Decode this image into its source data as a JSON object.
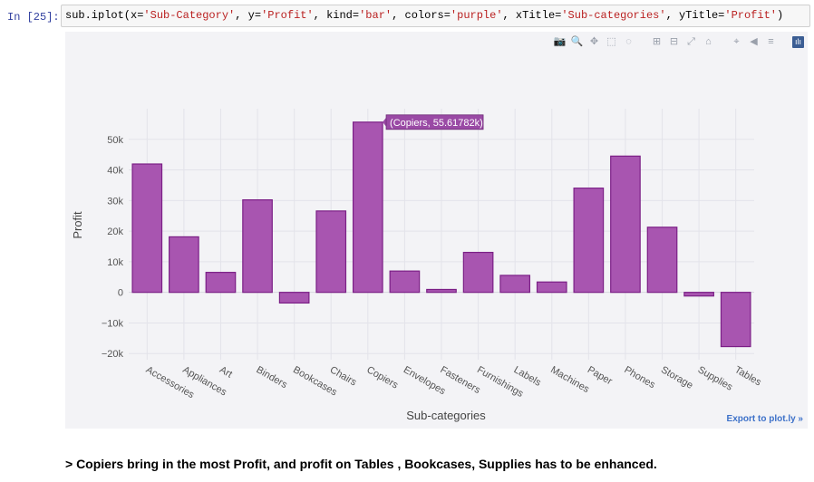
{
  "cell": {
    "prompt": "In [25]:",
    "code_prefix": "sub.iplot(x=",
    "code_parts": [
      {
        "t": "sub.iplot(x=",
        "s": false
      },
      {
        "t": "'Sub-Category'",
        "s": true
      },
      {
        "t": ", y=",
        "s": false
      },
      {
        "t": "'Profit'",
        "s": true
      },
      {
        "t": ", kind=",
        "s": false
      },
      {
        "t": "'bar'",
        "s": true
      },
      {
        "t": ", colors=",
        "s": false
      },
      {
        "t": "'purple'",
        "s": true
      },
      {
        "t": ", xTitle=",
        "s": false
      },
      {
        "t": "'Sub-categories'",
        "s": true
      },
      {
        "t": ", yTitle=",
        "s": false
      },
      {
        "t": "'Profit'",
        "s": true
      },
      {
        "t": ")",
        "s": false
      }
    ]
  },
  "toolbar": {
    "icons": [
      "camera-icon",
      "zoom-icon",
      "pan-icon",
      "box-select-icon",
      "lasso-icon",
      "zoom-in-icon",
      "zoom-out-icon",
      "autoscale-icon",
      "reset-axes-icon",
      "spike-lines-icon",
      "hover-closest-icon",
      "hover-compare-icon",
      "plotly-logo-icon"
    ]
  },
  "export_label": "Export to plot.ly »",
  "tooltip": {
    "text": "(Copiers, 55.61782k)"
  },
  "conclusion": "> Copiers bring in the most Profit, and profit on Tables , Bookcases, Supplies has to be enhanced.",
  "colors": {
    "bar_fill": "#a855b0",
    "bar_stroke": "#7b1f86",
    "grid": "#e3e3ea",
    "tooltip_bg": "#9a4aa5"
  },
  "chart_data": {
    "type": "bar",
    "categories": [
      "Accessories",
      "Appliances",
      "Art",
      "Binders",
      "Bookcases",
      "Chairs",
      "Copiers",
      "Envelopes",
      "Fasteners",
      "Furnishings",
      "Labels",
      "Machines",
      "Paper",
      "Phones",
      "Storage",
      "Supplies",
      "Tables"
    ],
    "values": [
      41937,
      18138,
      6528,
      30222,
      -3473,
      26590,
      55618,
      6964,
      950,
      13059,
      5546,
      3385,
      34054,
      44516,
      21279,
      -1189,
      -17725
    ],
    "xlabel": "Sub-categories",
    "ylabel": "Profit",
    "ylim": [
      -22000,
      60000
    ],
    "yticks": [
      -20000,
      -10000,
      0,
      10000,
      20000,
      30000,
      40000,
      50000
    ],
    "ytick_labels": [
      "−20k",
      "−10k",
      "0",
      "10k",
      "20k",
      "30k",
      "40k",
      "50k"
    ],
    "grid": true
  }
}
